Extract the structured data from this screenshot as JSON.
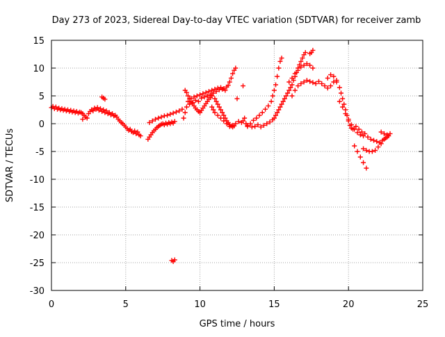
{
  "chart_data": {
    "type": "scatter",
    "title": "Day 273 of 2023, Sidereal Day-to-day VTEC variation (SDTVAR) for receiver zamb",
    "xlabel": "GPS time / hours",
    "ylabel": "SDTVAR / TECUs",
    "xlim": [
      0,
      25
    ],
    "ylim": [
      -30,
      15
    ],
    "xticks": [
      0,
      5,
      10,
      15,
      20,
      25
    ],
    "yticks": [
      15,
      10,
      5,
      0,
      -5,
      -10,
      -15,
      -20,
      -25,
      -30
    ],
    "grid": true,
    "marker": "+",
    "colors": {
      "series": "#ff0000",
      "axis": "#000000",
      "grid": "#a0a0a0"
    },
    "series": [
      {
        "name": "SDTVAR",
        "points": [
          [
            0.0,
            2.9
          ],
          [
            0.1,
            3.1
          ],
          [
            0.2,
            2.7
          ],
          [
            0.3,
            3.0
          ],
          [
            0.4,
            2.6
          ],
          [
            0.5,
            2.8
          ],
          [
            0.6,
            2.5
          ],
          [
            0.7,
            2.7
          ],
          [
            0.8,
            2.4
          ],
          [
            0.9,
            2.6
          ],
          [
            1.0,
            2.3
          ],
          [
            1.1,
            2.5
          ],
          [
            1.2,
            2.2
          ],
          [
            1.3,
            2.4
          ],
          [
            1.4,
            2.1
          ],
          [
            1.5,
            2.3
          ],
          [
            1.6,
            2.0
          ],
          [
            1.7,
            2.2
          ],
          [
            1.8,
            1.9
          ],
          [
            1.9,
            2.1
          ],
          [
            2.0,
            2.0
          ],
          [
            2.1,
            1.8
          ],
          [
            2.2,
            1.5
          ],
          [
            2.3,
            1.2
          ],
          [
            2.1,
            0.8
          ],
          [
            2.4,
            1.0
          ],
          [
            2.5,
            1.8
          ],
          [
            2.6,
            2.2
          ],
          [
            2.7,
            2.5
          ],
          [
            2.8,
            2.3
          ],
          [
            2.9,
            2.8
          ],
          [
            3.0,
            2.6
          ],
          [
            3.1,
            2.9
          ],
          [
            3.2,
            2.4
          ],
          [
            3.3,
            2.7
          ],
          [
            3.4,
            2.2
          ],
          [
            3.5,
            2.5
          ],
          [
            3.6,
            2.0
          ],
          [
            3.7,
            2.3
          ],
          [
            3.8,
            1.8
          ],
          [
            3.9,
            2.0
          ],
          [
            4.0,
            1.6
          ],
          [
            4.1,
            1.8
          ],
          [
            4.2,
            1.4
          ],
          [
            4.3,
            1.5
          ],
          [
            4.4,
            1.2
          ],
          [
            4.5,
            0.8
          ],
          [
            4.6,
            0.5
          ],
          [
            4.7,
            0.2
          ],
          [
            4.8,
            0.0
          ],
          [
            4.9,
            -0.3
          ],
          [
            5.0,
            -0.6
          ],
          [
            5.1,
            -0.9
          ],
          [
            5.2,
            -1.2
          ],
          [
            5.3,
            -1.0
          ],
          [
            5.4,
            -1.4
          ],
          [
            5.5,
            -1.6
          ],
          [
            5.6,
            -1.3
          ],
          [
            5.7,
            -1.8
          ],
          [
            5.8,
            -1.5
          ],
          [
            5.9,
            -2.0
          ],
          [
            6.0,
            -2.2
          ],
          [
            3.4,
            4.8
          ],
          [
            3.5,
            4.6
          ],
          [
            3.6,
            4.4
          ],
          [
            6.5,
            -2.8
          ],
          [
            6.6,
            -2.4
          ],
          [
            6.7,
            -2.0
          ],
          [
            6.8,
            -1.6
          ],
          [
            6.9,
            -1.3
          ],
          [
            7.0,
            -1.0
          ],
          [
            7.1,
            -0.7
          ],
          [
            7.2,
            -0.5
          ],
          [
            7.3,
            -0.3
          ],
          [
            7.4,
            -0.1
          ],
          [
            7.5,
            0.0
          ],
          [
            7.6,
            -0.2
          ],
          [
            7.7,
            0.1
          ],
          [
            7.8,
            -0.1
          ],
          [
            7.9,
            0.2
          ],
          [
            8.0,
            0.0
          ],
          [
            8.1,
            0.3
          ],
          [
            8.2,
            0.1
          ],
          [
            8.3,
            0.4
          ],
          [
            6.6,
            0.2
          ],
          [
            6.8,
            0.5
          ],
          [
            7.0,
            0.8
          ],
          [
            7.2,
            1.0
          ],
          [
            7.4,
            1.2
          ],
          [
            7.6,
            1.4
          ],
          [
            7.8,
            1.5
          ],
          [
            8.0,
            1.7
          ],
          [
            8.2,
            1.9
          ],
          [
            8.4,
            2.1
          ],
          [
            8.6,
            2.3
          ],
          [
            8.8,
            2.6
          ],
          [
            8.1,
            -24.6
          ],
          [
            8.2,
            -24.8
          ],
          [
            8.3,
            -24.5
          ],
          [
            8.9,
            1.0
          ],
          [
            9.0,
            2.0
          ],
          [
            9.1,
            3.0
          ],
          [
            9.2,
            4.0
          ],
          [
            9.3,
            3.5
          ],
          [
            9.4,
            4.5
          ],
          [
            9.5,
            3.8
          ],
          [
            9.6,
            4.8
          ],
          [
            9.7,
            4.2
          ],
          [
            9.8,
            5.0
          ],
          [
            9.9,
            4.0
          ],
          [
            10.0,
            5.2
          ],
          [
            10.1,
            4.6
          ],
          [
            10.2,
            5.4
          ],
          [
            10.3,
            4.8
          ],
          [
            10.4,
            5.6
          ],
          [
            10.5,
            5.0
          ],
          [
            10.6,
            5.8
          ],
          [
            10.7,
            5.2
          ],
          [
            10.8,
            6.0
          ],
          [
            10.9,
            5.5
          ],
          [
            11.0,
            6.2
          ],
          [
            11.1,
            5.8
          ],
          [
            11.2,
            6.4
          ],
          [
            11.3,
            6.1
          ],
          [
            11.4,
            6.5
          ],
          [
            11.5,
            6.2
          ],
          [
            11.6,
            6.3
          ],
          [
            11.7,
            6.0
          ],
          [
            11.8,
            6.6
          ],
          [
            11.9,
            6.9
          ],
          [
            12.0,
            7.5
          ],
          [
            12.1,
            8.2
          ],
          [
            12.2,
            9.0
          ],
          [
            12.3,
            9.6
          ],
          [
            12.4,
            10.0
          ],
          [
            9.0,
            6.0
          ],
          [
            9.1,
            5.6
          ],
          [
            9.2,
            5.0
          ],
          [
            9.3,
            4.5
          ],
          [
            9.4,
            4.0
          ],
          [
            9.5,
            3.6
          ],
          [
            9.6,
            3.2
          ],
          [
            9.7,
            2.8
          ],
          [
            9.8,
            2.5
          ],
          [
            9.9,
            2.2
          ],
          [
            10.0,
            2.0
          ],
          [
            10.1,
            2.4
          ],
          [
            10.2,
            2.8
          ],
          [
            10.3,
            3.2
          ],
          [
            10.4,
            3.6
          ],
          [
            10.5,
            4.0
          ],
          [
            10.6,
            4.4
          ],
          [
            10.7,
            4.7
          ],
          [
            10.8,
            5.0
          ],
          [
            11.0,
            4.5
          ],
          [
            11.1,
            4.0
          ],
          [
            11.2,
            3.5
          ],
          [
            11.3,
            3.0
          ],
          [
            11.4,
            2.5
          ],
          [
            11.5,
            2.0
          ],
          [
            11.6,
            1.5
          ],
          [
            11.7,
            1.0
          ],
          [
            11.8,
            0.5
          ],
          [
            11.9,
            0.2
          ],
          [
            12.0,
            -0.2
          ],
          [
            12.1,
            -0.4
          ],
          [
            12.2,
            -0.6
          ],
          [
            12.3,
            -0.4
          ],
          [
            10.8,
            3.0
          ],
          [
            10.9,
            2.5
          ],
          [
            11.0,
            2.0
          ],
          [
            11.2,
            1.5
          ],
          [
            11.4,
            1.0
          ],
          [
            11.6,
            0.5
          ],
          [
            11.8,
            0.0
          ],
          [
            12.0,
            -0.5
          ],
          [
            12.2,
            -0.3
          ],
          [
            12.4,
            0.0
          ],
          [
            12.6,
            0.4
          ],
          [
            12.8,
            0.2
          ],
          [
            12.9,
            0.5
          ],
          [
            13.0,
            1.0
          ],
          [
            13.1,
            0.0
          ],
          [
            13.2,
            -0.3
          ],
          [
            12.5,
            4.5
          ],
          [
            12.9,
            6.8
          ],
          [
            13.2,
            -0.5
          ],
          [
            13.4,
            0.0
          ],
          [
            13.6,
            0.6
          ],
          [
            13.8,
            1.0
          ],
          [
            14.0,
            1.5
          ],
          [
            14.2,
            2.0
          ],
          [
            14.4,
            2.6
          ],
          [
            14.6,
            3.2
          ],
          [
            14.8,
            4.0
          ],
          [
            14.9,
            5.0
          ],
          [
            15.0,
            6.0
          ],
          [
            15.1,
            7.0
          ],
          [
            15.2,
            8.5
          ],
          [
            15.3,
            10.0
          ],
          [
            15.4,
            11.2
          ],
          [
            15.5,
            11.8
          ],
          [
            13.5,
            -0.6
          ],
          [
            13.7,
            -0.5
          ],
          [
            13.9,
            -0.2
          ],
          [
            14.1,
            -0.6
          ],
          [
            14.3,
            -0.3
          ],
          [
            14.5,
            0.0
          ],
          [
            14.7,
            0.3
          ],
          [
            14.9,
            0.7
          ],
          [
            15.0,
            1.0
          ],
          [
            15.1,
            1.5
          ],
          [
            15.2,
            2.0
          ],
          [
            15.3,
            2.5
          ],
          [
            15.4,
            3.0
          ],
          [
            15.5,
            3.5
          ],
          [
            15.6,
            4.0
          ],
          [
            15.7,
            4.5
          ],
          [
            15.8,
            5.0
          ],
          [
            15.9,
            5.5
          ],
          [
            16.0,
            6.0
          ],
          [
            16.1,
            6.5
          ],
          [
            16.2,
            7.0
          ],
          [
            16.3,
            7.8
          ],
          [
            16.4,
            8.5
          ],
          [
            16.5,
            9.2
          ],
          [
            16.6,
            10.0
          ],
          [
            16.7,
            10.6
          ],
          [
            16.8,
            11.2
          ],
          [
            16.9,
            11.8
          ],
          [
            17.0,
            12.4
          ],
          [
            17.1,
            12.8
          ],
          [
            16.0,
            7.5
          ],
          [
            16.2,
            8.2
          ],
          [
            16.4,
            9.0
          ],
          [
            16.6,
            9.6
          ],
          [
            16.8,
            10.2
          ],
          [
            17.0,
            10.5
          ],
          [
            17.2,
            10.8
          ],
          [
            17.4,
            10.5
          ],
          [
            17.6,
            10.0
          ],
          [
            16.2,
            5.0
          ],
          [
            16.4,
            6.0
          ],
          [
            16.6,
            6.8
          ],
          [
            16.8,
            7.2
          ],
          [
            17.0,
            7.5
          ],
          [
            17.2,
            7.8
          ],
          [
            17.4,
            7.6
          ],
          [
            17.6,
            7.4
          ],
          [
            17.8,
            7.2
          ],
          [
            17.5,
            12.8
          ],
          [
            17.6,
            13.2
          ],
          [
            17.4,
            12.6
          ],
          [
            18.0,
            7.6
          ],
          [
            18.2,
            7.2
          ],
          [
            18.4,
            6.8
          ],
          [
            18.6,
            6.4
          ],
          [
            18.8,
            6.8
          ],
          [
            19.0,
            7.5
          ],
          [
            19.2,
            7.8
          ],
          [
            18.6,
            8.2
          ],
          [
            18.8,
            8.8
          ],
          [
            19.0,
            8.5
          ],
          [
            19.2,
            7.5
          ],
          [
            19.4,
            6.5
          ],
          [
            19.5,
            5.5
          ],
          [
            19.6,
            4.5
          ],
          [
            19.7,
            3.5
          ],
          [
            19.8,
            2.5
          ],
          [
            19.9,
            1.5
          ],
          [
            20.0,
            0.5
          ],
          [
            20.1,
            -0.3
          ],
          [
            20.2,
            -0.8
          ],
          [
            20.3,
            -1.0
          ],
          [
            19.4,
            4.0
          ],
          [
            19.6,
            3.0
          ],
          [
            19.8,
            1.8
          ],
          [
            20.0,
            0.8
          ],
          [
            20.2,
            -0.2
          ],
          [
            20.4,
            -1.0
          ],
          [
            20.6,
            -1.6
          ],
          [
            20.8,
            -2.0
          ],
          [
            21.0,
            -2.2
          ],
          [
            20.5,
            -0.5
          ],
          [
            20.7,
            -1.0
          ],
          [
            20.9,
            -1.5
          ],
          [
            21.1,
            -1.8
          ],
          [
            21.3,
            -2.4
          ],
          [
            21.5,
            -2.8
          ],
          [
            21.7,
            -3.0
          ],
          [
            21.9,
            -3.2
          ],
          [
            22.1,
            -3.4
          ],
          [
            22.3,
            -3.0
          ],
          [
            22.5,
            -2.6
          ],
          [
            22.7,
            -2.2
          ],
          [
            22.8,
            -1.8
          ],
          [
            20.4,
            -4.0
          ],
          [
            20.6,
            -5.0
          ],
          [
            20.8,
            -6.0
          ],
          [
            21.0,
            -7.0
          ],
          [
            21.2,
            -8.0
          ],
          [
            21.0,
            -4.5
          ],
          [
            21.2,
            -4.8
          ],
          [
            21.4,
            -5.0
          ],
          [
            21.6,
            -5.0
          ],
          [
            21.8,
            -4.8
          ],
          [
            22.0,
            -4.2
          ],
          [
            22.2,
            -3.6
          ],
          [
            22.4,
            -2.8
          ],
          [
            22.6,
            -2.4
          ],
          [
            22.2,
            -1.5
          ],
          [
            22.4,
            -1.8
          ],
          [
            22.6,
            -2.0
          ]
        ]
      }
    ]
  }
}
